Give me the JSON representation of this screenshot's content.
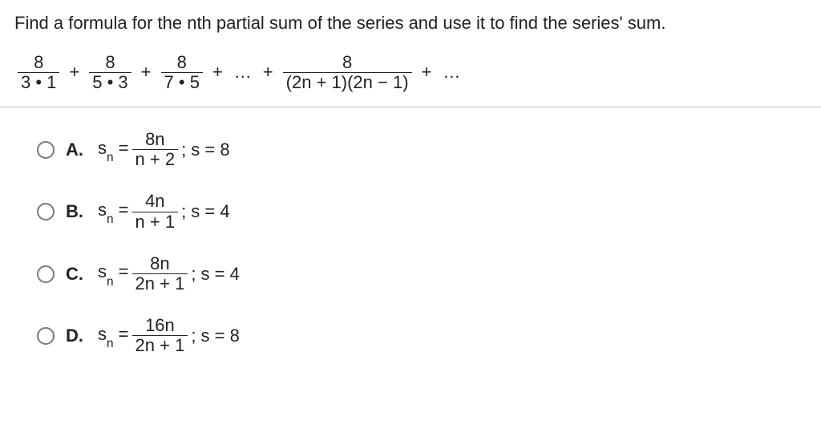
{
  "question": "Find a formula for the nth partial sum of the series and use it to find the series' sum.",
  "series_terms": [
    {
      "num": "8",
      "den": "3 • 1"
    },
    {
      "num": "8",
      "den": "5 • 3"
    },
    {
      "num": "8",
      "den": "7 • 5"
    }
  ],
  "series_general": {
    "num": "8",
    "den": "(2n + 1)(2n − 1)"
  },
  "plus": "+",
  "ellipsis": "…",
  "options": [
    {
      "letter": "A.",
      "sn_num": "8n",
      "sn_den": "n + 2",
      "s_val": "8"
    },
    {
      "letter": "B.",
      "sn_num": "4n",
      "sn_den": "n + 1",
      "s_val": "4"
    },
    {
      "letter": "C.",
      "sn_num": "8n",
      "sn_den": "2n + 1",
      "s_val": "4"
    },
    {
      "letter": "D.",
      "sn_num": "16n",
      "sn_den": "2n + 1",
      "s_val": "8"
    }
  ],
  "labels": {
    "sn_eq": "s",
    "n": "n",
    "eq": " = ",
    "semi_s": "; s = "
  }
}
